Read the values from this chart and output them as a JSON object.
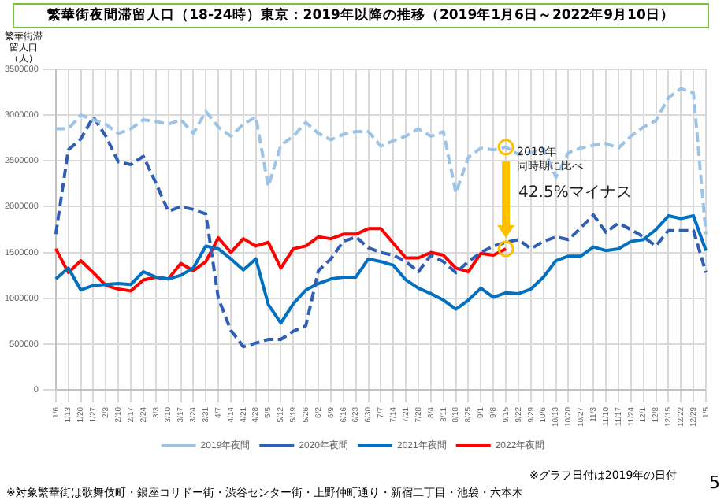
{
  "chart_data": {
    "type": "line",
    "title": "繁華街夜間滞留人口（18-24時）東京：2019年以降の推移（2019年1月6日～2022年9月10日）",
    "ylabel": "繁華街滞留人口（人）",
    "categories": [
      "1/6",
      "1/13",
      "1/20",
      "1/27",
      "2/3",
      "2/10",
      "2/17",
      "2/24",
      "3/3",
      "3/10",
      "3/17",
      "3/24",
      "3/31",
      "4/7",
      "4/14",
      "4/21",
      "4/28",
      "5/5",
      "5/12",
      "5/19",
      "5/26",
      "6/2",
      "6/9",
      "6/16",
      "6/23",
      "6/30",
      "7/7",
      "7/14",
      "7/21",
      "7/28",
      "8/4",
      "8/11",
      "8/18",
      "8/25",
      "9/1",
      "9/8",
      "9/15",
      "9/22",
      "9/29",
      "10/6",
      "10/13",
      "10/20",
      "10/27",
      "11/3",
      "11/10",
      "11/17",
      "11/24",
      "12/1",
      "12/8",
      "12/15",
      "12/22",
      "12/29",
      "1/5"
    ],
    "series": [
      {
        "name": "2019年夜間",
        "color": "#9dc3e6",
        "line_style": "dashed",
        "values": [
          2850000,
          2850000,
          3000000,
          2950000,
          2900000,
          2800000,
          2850000,
          2950000,
          2930000,
          2900000,
          2950000,
          2800000,
          3040000,
          2870000,
          2770000,
          2900000,
          2980000,
          2220000,
          2670000,
          2770000,
          2920000,
          2800000,
          2730000,
          2790000,
          2820000,
          2820000,
          2660000,
          2720000,
          2770000,
          2850000,
          2770000,
          2820000,
          2150000,
          2540000,
          2640000,
          2620000,
          2650000,
          2570000,
          2590000,
          2640000,
          2320000,
          2590000,
          2640000,
          2670000,
          2690000,
          2640000,
          2770000,
          2870000,
          2940000,
          3190000,
          3290000,
          3240000,
          1700000
        ]
      },
      {
        "name": "2020年夜間",
        "color": "#2e5fb5",
        "line_style": "dashed",
        "values": [
          1700000,
          2620000,
          2740000,
          2980000,
          2770000,
          2490000,
          2460000,
          2550000,
          2260000,
          1950000,
          2000000,
          1970000,
          1920000,
          1000000,
          650000,
          470000,
          510000,
          550000,
          550000,
          640000,
          700000,
          1300000,
          1430000,
          1620000,
          1670000,
          1550000,
          1500000,
          1470000,
          1400000,
          1290000,
          1470000,
          1400000,
          1280000,
          1400000,
          1500000,
          1570000,
          1610000,
          1640000,
          1540000,
          1620000,
          1670000,
          1640000,
          1770000,
          1910000,
          1720000,
          1820000,
          1750000,
          1670000,
          1570000,
          1740000,
          1740000,
          1740000,
          1280000
        ]
      },
      {
        "name": "2021年夜間",
        "color": "#0070c0",
        "line_style": "solid",
        "values": [
          1210000,
          1330000,
          1090000,
          1140000,
          1150000,
          1160000,
          1150000,
          1290000,
          1230000,
          1210000,
          1250000,
          1330000,
          1570000,
          1540000,
          1430000,
          1310000,
          1430000,
          930000,
          730000,
          940000,
          1090000,
          1160000,
          1210000,
          1230000,
          1230000,
          1430000,
          1400000,
          1360000,
          1200000,
          1110000,
          1050000,
          980000,
          880000,
          980000,
          1110000,
          1010000,
          1060000,
          1050000,
          1100000,
          1230000,
          1410000,
          1460000,
          1460000,
          1560000,
          1520000,
          1540000,
          1620000,
          1640000,
          1750000,
          1900000,
          1870000,
          1900000,
          1520000
        ]
      },
      {
        "name": "2022年夜間",
        "color": "#ff0000",
        "line_style": "solid",
        "values": [
          1540000,
          1280000,
          1410000,
          1280000,
          1140000,
          1100000,
          1080000,
          1200000,
          1230000,
          1210000,
          1380000,
          1300000,
          1400000,
          1660000,
          1500000,
          1650000,
          1570000,
          1610000,
          1330000,
          1540000,
          1570000,
          1670000,
          1650000,
          1700000,
          1700000,
          1760000,
          1760000,
          1600000,
          1440000,
          1440000,
          1500000,
          1470000,
          1330000,
          1290000,
          1490000,
          1470000,
          1540000,
          null,
          null,
          null,
          null,
          null,
          null,
          null,
          null,
          null,
          null,
          null,
          null,
          null,
          null,
          null,
          null
        ]
      }
    ],
    "ylim": [
      0,
      3500000
    ],
    "yticks": [
      0,
      500000,
      1000000,
      1500000,
      2000000,
      2500000,
      3000000,
      3500000
    ],
    "grid": true,
    "legend": "bottom",
    "marker": "none",
    "annotations": [
      "2019年",
      "同時期に比べ",
      "42.5%マイナス",
      "※グラフ日付は2019年の日付",
      "※対象繁華街は歌舞伎町・銀座コリドー街・渋谷センター街・上野仲町通り・新宿二丁目・池袋・六本木",
      "5"
    ]
  }
}
